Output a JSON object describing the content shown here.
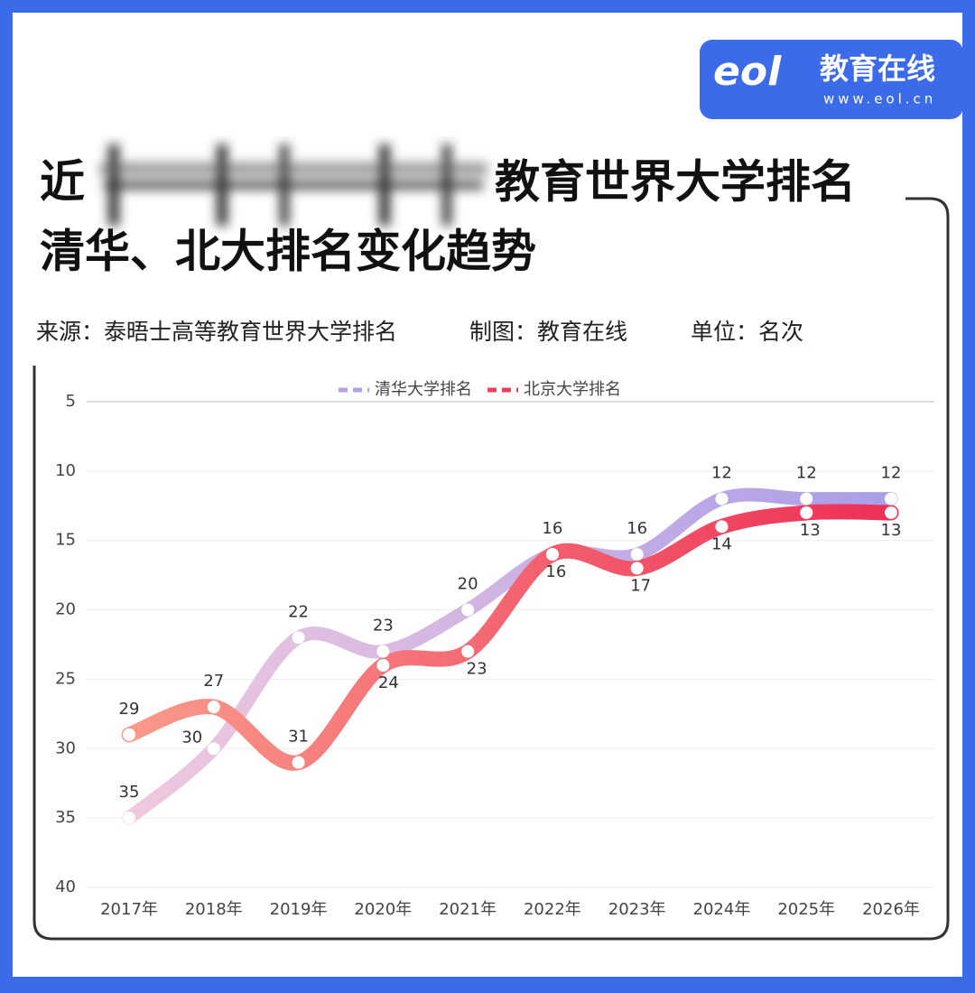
{
  "header": {
    "title_start": "近",
    "title_end": "教育世界大学排名",
    "title_line2": "清华、北大排名变化趋势",
    "source": "来源：泰晤士高等教育世界大学排名",
    "made_by": "制图：教育在线",
    "unit": "单位：名次"
  },
  "logo": {
    "mark": "eol",
    "name": "教育在线",
    "url": "www.eol.cn"
  },
  "chart_data": {
    "type": "line",
    "categories": [
      "2017年",
      "2018年",
      "2019年",
      "2020年",
      "2021年",
      "2022年",
      "2023年",
      "2024年",
      "2025年",
      "2026年"
    ],
    "ylim": [
      5,
      40
    ],
    "yticks": [
      5,
      10,
      15,
      20,
      25,
      30,
      35,
      40
    ],
    "y_inverted": true,
    "grid": true,
    "smooth": true,
    "legend": "top",
    "series": [
      {
        "name": "清华大学排名",
        "color": "#b3a2e6",
        "gradient": [
          "#f0c9de",
          "#aa9de8"
        ],
        "values": [
          35,
          30,
          22,
          23,
          20,
          16,
          16,
          12,
          12,
          12
        ]
      },
      {
        "name": "北京大学排名",
        "color": "#ee3f5c",
        "gradient": [
          "#f99a8a",
          "#ee2f57"
        ],
        "values": [
          29,
          27,
          31,
          24,
          23,
          16,
          17,
          14,
          13,
          13
        ]
      }
    ]
  }
}
